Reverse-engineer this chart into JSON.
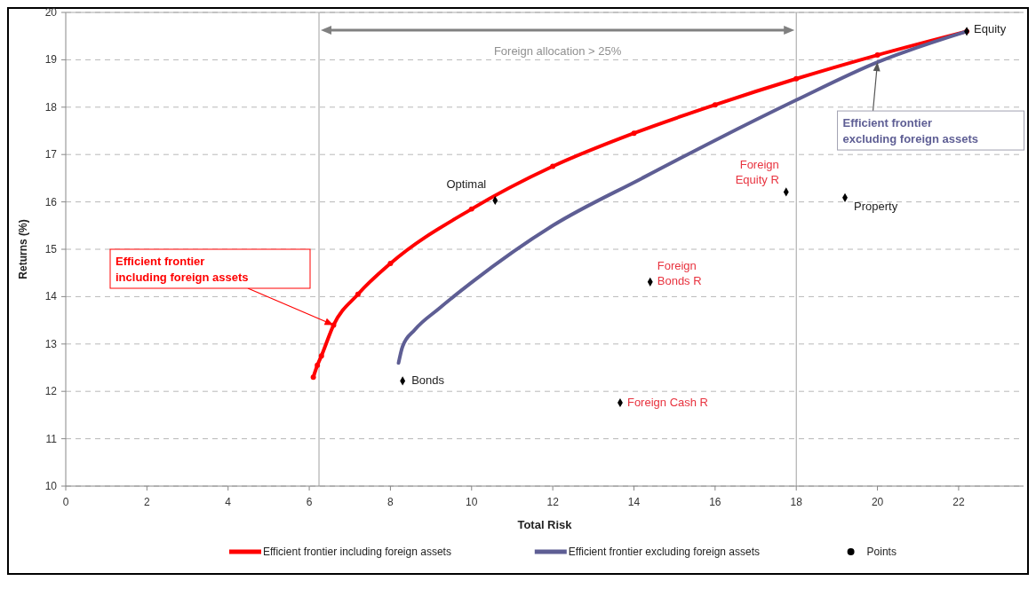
{
  "chart_data": {
    "type": "line",
    "xlabel": "Total Risk",
    "ylabel": "Returns (%)",
    "xlim": [
      0,
      23.6
    ],
    "xticks": [
      0,
      2,
      4,
      6,
      8,
      10,
      12,
      14,
      16,
      18,
      20,
      22
    ],
    "ylim": [
      10,
      20
    ],
    "yticks": [
      10,
      11,
      12,
      13,
      14,
      15,
      16,
      17,
      18,
      19,
      20
    ],
    "grid": "y",
    "legend": "bottom",
    "line_style": "solid",
    "series": [
      {
        "name": "Efficient frontier including foreign assets",
        "color": "#ff0000",
        "marker": "circle",
        "x": [
          6.1,
          6.2,
          6.3,
          6.6,
          7.2,
          8,
          10,
          12,
          14,
          16,
          18,
          20,
          22.2
        ],
        "values": [
          12.3,
          12.55,
          12.75,
          13.4,
          14.05,
          14.7,
          15.85,
          16.75,
          17.45,
          18.05,
          18.6,
          19.1,
          19.6
        ]
      },
      {
        "name": "Efficient frontier excluding foreign assets",
        "color": "#5e5e94",
        "marker": "none",
        "x": [
          8.2,
          8.3,
          8.6,
          9.2,
          10,
          12,
          14.2,
          16,
          18,
          20,
          22.2
        ],
        "values": [
          12.6,
          12.95,
          13.3,
          13.75,
          14.3,
          15.5,
          16.5,
          17.3,
          18.15,
          18.95,
          19.6
        ]
      },
      {
        "name": "Points",
        "type": "scatter",
        "color": "#000000",
        "marker": "diamond",
        "x": [
          10.58,
          8.3,
          13.66,
          14.4,
          17.75,
          19.2,
          22.2
        ],
        "values": [
          16.03,
          12.22,
          11.76,
          14.31,
          16.21,
          16.09,
          19.6
        ],
        "value_labels": [
          "Optimal",
          "Bonds",
          "Foreign Cash R",
          "Foreign Bonds R",
          "Foreign Equity R",
          "Property",
          "Equity"
        ]
      }
    ],
    "ref_lines": [
      {
        "axis": "x",
        "value": 6.24,
        "color": "#a0a0a0"
      },
      {
        "axis": "x",
        "value": 18,
        "color": "#a0a0a0"
      }
    ],
    "annotations": [
      "Foreign allocation > 25%",
      {
        "text": "Efficient frontier including foreign assets",
        "x": 6.6,
        "y": 13.4
      },
      {
        "text": "Efficient frontier excluding foreign assets",
        "x": 20,
        "y": 18.95
      }
    ]
  }
}
